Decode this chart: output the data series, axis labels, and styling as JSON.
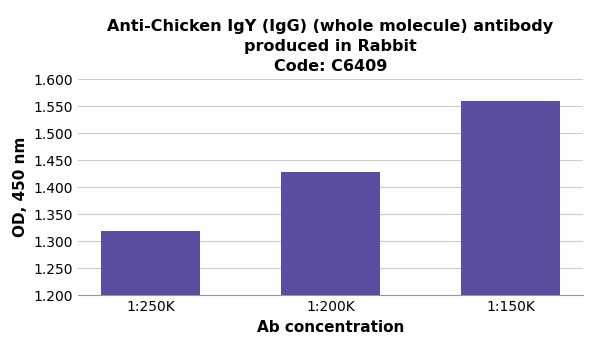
{
  "title_line1": "Anti-Chicken IgY (IgG) (whole molecule) antibody",
  "title_line2": "produced in Rabbit",
  "title_line3": "Code: C6409",
  "categories": [
    "1:250K",
    "1:200K",
    "1:150K"
  ],
  "values": [
    1.318,
    1.428,
    1.56
  ],
  "bar_color": "#5B4EA0",
  "xlabel": "Ab concentration",
  "ylabel": "OD, 450 nm",
  "ylim": [
    1.2,
    1.6
  ],
  "yticks": [
    1.2,
    1.25,
    1.3,
    1.35,
    1.4,
    1.45,
    1.5,
    1.55,
    1.6
  ],
  "title_fontsize": 11.5,
  "axis_label_fontsize": 11,
  "tick_fontsize": 10,
  "background_color": "#ffffff",
  "grid_color": "#cccccc",
  "bar_width": 0.55
}
